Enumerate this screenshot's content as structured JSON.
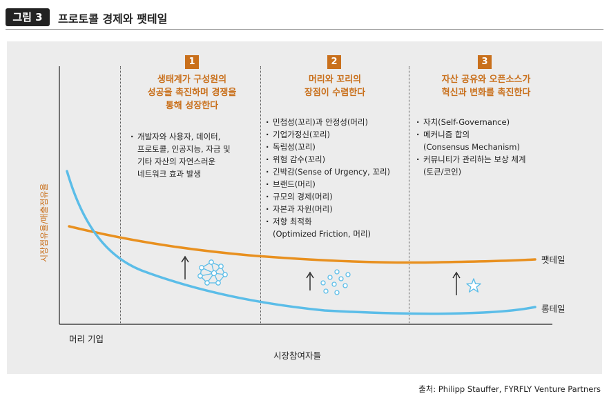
{
  "figure": {
    "badge": "그림 3",
    "title": "프로토콜 경제와 팻테일"
  },
  "axes": {
    "y_label": "시장점유율/매출점유율",
    "x_origin_label": "머리 기업",
    "x_label": "시장참여자들"
  },
  "curves": {
    "fat_tail_label": "팻테일",
    "long_tail_label": "롱테일"
  },
  "columns": [
    {
      "number": "1",
      "heading": [
        "생태계가 구성원의",
        "성공을 촉진하며 경쟁을",
        "통해 성장한다"
      ],
      "bullets": [
        {
          "text": "개발자와 사용자, 데이터,",
          "cont": false
        },
        {
          "text": "프로토콜, 인공지능, 자금 및",
          "cont": true
        },
        {
          "text": "기타 자산의 자연스러운",
          "cont": true
        },
        {
          "text": "네트워크 효과 발생",
          "cont": true
        }
      ]
    },
    {
      "number": "2",
      "heading": [
        "머리와 꼬리의",
        "장점이 수렴한다"
      ],
      "bullets": [
        {
          "text": "민첩성(꼬리)과 안정성(머리)",
          "cont": false
        },
        {
          "text": "기업가정신(꼬리)",
          "cont": false
        },
        {
          "text": "독립성(꼬리)",
          "cont": false
        },
        {
          "text": "위험 감수(꼬리)",
          "cont": false
        },
        {
          "text": "긴박감(Sense of Urgency, 꼬리)",
          "cont": false
        },
        {
          "text": "브랜드(머리)",
          "cont": false
        },
        {
          "text": "규모의 경제(머리)",
          "cont": false
        },
        {
          "text": "자본과 자원(머리)",
          "cont": false
        },
        {
          "text": "저항 최적화",
          "cont": false
        },
        {
          "text": "(Optimized Friction, 머리)",
          "cont": true
        }
      ]
    },
    {
      "number": "3",
      "heading": [
        "자산 공유와 오픈소스가",
        "혁신과 변화를 촉진한다"
      ],
      "bullets": [
        {
          "text": "자치(Self-Governance)",
          "cont": false
        },
        {
          "text": "메커니즘 합의",
          "cont": false
        },
        {
          "text": "(Consensus Mechanism)",
          "cont": true
        },
        {
          "text": "커뮤니티가 관리하는 보상 체계",
          "cont": false
        },
        {
          "text": "(토큰/코인)",
          "cont": true
        }
      ]
    }
  ],
  "icons": [
    "network-icon",
    "dots-cluster-icon",
    "star-icon"
  ],
  "colors": {
    "orange": "#e8901f",
    "orange_text": "#c9701c",
    "blue": "#5bbde8",
    "panel": "#ececec"
  },
  "source": "출처: Philipp Stauffer, FYRFLY Venture Partners"
}
